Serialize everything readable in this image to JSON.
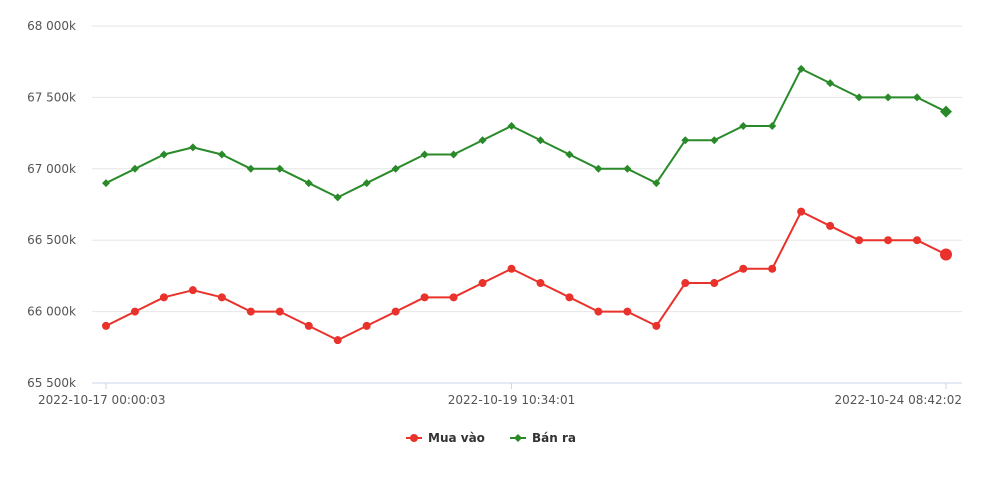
{
  "chart_data": {
    "type": "line",
    "title": "",
    "xlabel": "",
    "ylabel": "",
    "ylim": [
      65500,
      68000
    ],
    "yticks": [
      {
        "value": 68000,
        "label": "68 000k"
      },
      {
        "value": 67500,
        "label": "67 500k"
      },
      {
        "value": 67000,
        "label": "67 000k"
      },
      {
        "value": 66500,
        "label": "66 500k"
      },
      {
        "value": 66000,
        "label": "66 000k"
      },
      {
        "value": 65500,
        "label": "65 500k"
      }
    ],
    "xtick_labels": [
      {
        "index": 0,
        "label": "2022-10-17 00:00:03"
      },
      {
        "index": 14,
        "label": "2022-10-19 10:34:01"
      },
      {
        "index": 29,
        "label": "2022-10-24 08:42:02"
      }
    ],
    "grid": true,
    "legend_position": "bottom",
    "series": [
      {
        "name": "Mua vào",
        "color": "#e8322b",
        "marker": "circle",
        "values": [
          65900,
          66000,
          66100,
          66150,
          66100,
          66000,
          66000,
          65900,
          65800,
          65900,
          66000,
          66100,
          66100,
          66200,
          66300,
          66200,
          66100,
          66000,
          66000,
          65900,
          66200,
          66200,
          66300,
          66300,
          66700,
          66600,
          66500,
          66500,
          66500,
          66400
        ]
      },
      {
        "name": "Bán ra",
        "color": "#2a8a2a",
        "marker": "diamond",
        "values": [
          66900,
          67000,
          67100,
          67150,
          67100,
          67000,
          67000,
          66900,
          66800,
          66900,
          67000,
          67100,
          67100,
          67200,
          67300,
          67200,
          67100,
          67000,
          67000,
          66900,
          67200,
          67200,
          67300,
          67300,
          67700,
          67600,
          67500,
          67500,
          67500,
          67400
        ]
      }
    ]
  }
}
